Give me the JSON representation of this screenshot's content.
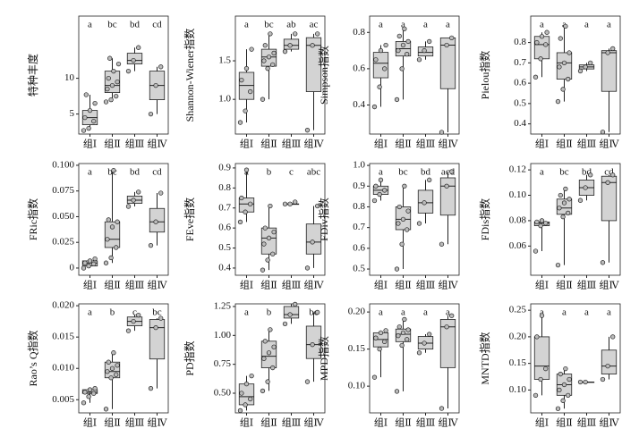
{
  "chart_data": [
    {
      "type": "box",
      "ylabel": "特种丰度",
      "categories": [
        "组Ⅰ",
        "组Ⅱ",
        "组Ⅲ",
        "组Ⅳ"
      ],
      "letters": [
        "a",
        "bc",
        "bd",
        "cd"
      ],
      "color": "#d3d3d3",
      "ylim": [
        2.2,
        18.7
      ],
      "yticks": [
        5,
        10
      ],
      "boxes": [
        {
          "min": 2.7,
          "q1": 3.5,
          "median": 4.5,
          "q3": 5.5,
          "max": 7.7,
          "points": [
            2.7,
            3,
            4,
            4.5,
            5.5,
            6.5,
            7.7
          ]
        },
        {
          "min": 6.7,
          "q1": 8,
          "median": 9,
          "q3": 11,
          "max": 12.8,
          "points": [
            6.7,
            7,
            7.5,
            8.5,
            9,
            9.5,
            10,
            11,
            12,
            12.8
          ]
        },
        {
          "min": 11,
          "q1": 12,
          "median": 12.5,
          "q3": 13.5,
          "max": 14.3,
          "points": [
            11,
            12.5,
            14.3
          ]
        },
        {
          "min": 5,
          "q1": 7,
          "median": 9,
          "q3": 11,
          "max": 11.6,
          "points": [
            5,
            9,
            11.6
          ]
        }
      ]
    },
    {
      "type": "box",
      "ylabel": "Shannon-Wiener指数",
      "categories": [
        "组Ⅰ",
        "组Ⅱ",
        "组Ⅲ",
        "组Ⅳ"
      ],
      "letters": [
        "a",
        "bc",
        "ab",
        "ac"
      ],
      "color": "#d3d3d3",
      "ylim": [
        0.55,
        2.08
      ],
      "yticks": [
        {
          "value": 1,
          "label": "1.0"
        },
        1.5
      ],
      "boxes": [
        {
          "min": 0.7,
          "q1": 1.0,
          "median": 1.18,
          "q3": 1.35,
          "max": 1.65,
          "points": [
            0.7,
            0.85,
            1.1,
            1.25,
            1.4,
            1.65
          ]
        },
        {
          "min": 1.0,
          "q1": 1.43,
          "median": 1.55,
          "q3": 1.65,
          "max": 1.85,
          "points": [
            1.0,
            1.4,
            1.45,
            1.5,
            1.55,
            1.6,
            1.7,
            1.85
          ]
        },
        {
          "min": 1.62,
          "q1": 1.65,
          "median": 1.7,
          "q3": 1.78,
          "max": 1.85,
          "points": [
            1.62,
            1.7,
            1.85
          ]
        },
        {
          "min": 0.6,
          "q1": 1.1,
          "median": 1.7,
          "q3": 1.8,
          "max": 1.85,
          "points": [
            0.6,
            1.7,
            1.85
          ]
        }
      ]
    },
    {
      "type": "box",
      "ylabel": "Simpson指数",
      "categories": [
        "组Ⅰ",
        "组Ⅱ",
        "组Ⅲ",
        "组Ⅳ"
      ],
      "letters": [
        "a",
        "a",
        "a",
        "a"
      ],
      "color": "#d3d3d3",
      "ylim": [
        0.24,
        0.89
      ],
      "yticks": [
        0.4,
        0.6,
        0.8
      ],
      "boxes": [
        {
          "min": 0.39,
          "q1": 0.55,
          "median": 0.63,
          "q3": 0.69,
          "max": 0.73,
          "points": [
            0.39,
            0.5,
            0.6,
            0.65,
            0.7,
            0.73
          ]
        },
        {
          "min": 0.43,
          "q1": 0.67,
          "median": 0.71,
          "q3": 0.75,
          "max": 0.82,
          "points": [
            0.43,
            0.6,
            0.68,
            0.7,
            0.73,
            0.75,
            0.78,
            0.82
          ]
        },
        {
          "min": 0.65,
          "q1": 0.67,
          "median": 0.69,
          "q3": 0.72,
          "max": 0.75,
          "points": [
            0.65,
            0.7,
            0.75
          ]
        },
        {
          "min": 0.25,
          "q1": 0.49,
          "median": 0.73,
          "q3": 0.77,
          "max": 0.77,
          "points": [
            0.25,
            0.73,
            0.77
          ]
        }
      ]
    },
    {
      "type": "box",
      "ylabel": "Pielou指数",
      "categories": [
        "组Ⅰ",
        "组Ⅱ",
        "组Ⅲ",
        "组Ⅳ"
      ],
      "letters": [
        "a",
        "a",
        "a",
        "a"
      ],
      "color": "#d3d3d3",
      "ylim": [
        0.35,
        0.93
      ],
      "yticks": [
        0.4,
        0.5,
        0.6,
        0.7,
        0.8
      ],
      "boxes": [
        {
          "min": 0.63,
          "q1": 0.72,
          "median": 0.79,
          "q3": 0.83,
          "max": 0.85,
          "points": [
            0.63,
            0.72,
            0.79,
            0.8,
            0.83,
            0.85
          ]
        },
        {
          "min": 0.51,
          "q1": 0.62,
          "median": 0.7,
          "q3": 0.75,
          "max": 0.88,
          "points": [
            0.51,
            0.57,
            0.62,
            0.68,
            0.7,
            0.75,
            0.82,
            0.88
          ]
        },
        {
          "min": 0.66,
          "q1": 0.67,
          "median": 0.68,
          "q3": 0.69,
          "max": 0.7,
          "points": [
            0.66,
            0.68,
            0.7
          ]
        },
        {
          "min": 0.36,
          "q1": 0.56,
          "median": 0.75,
          "q3": 0.76,
          "max": 0.77,
          "points": [
            0.36,
            0.75,
            0.77
          ]
        }
      ]
    },
    {
      "type": "box",
      "ylabel": "FRic指数",
      "categories": [
        "组Ⅰ",
        "组Ⅱ",
        "组Ⅲ",
        "组Ⅳ"
      ],
      "letters": [
        "a",
        "bc",
        "bd",
        "cd"
      ],
      "color": "#d3d3d3",
      "ylim": [
        -0.007,
        0.1017
      ],
      "yticks": [
        0,
        0.025,
        {
          "value": 0.05,
          "label": "0.050"
        },
        0.075,
        {
          "value": 0.1,
          "label": "0.100"
        }
      ],
      "boxes": [
        {
          "min": 0,
          "q1": 0.002,
          "median": 0.005,
          "q3": 0.007,
          "max": 0.009,
          "points": [
            0,
            0.002,
            0.004,
            0.005,
            0.007,
            0.009
          ]
        },
        {
          "min": 0.005,
          "q1": 0.02,
          "median": 0.028,
          "q3": 0.045,
          "max": 0.095,
          "points": [
            0.005,
            0.01,
            0.02,
            0.028,
            0.04,
            0.045,
            0.047,
            0.095
          ]
        },
        {
          "min": 0.06,
          "q1": 0.063,
          "median": 0.066,
          "q3": 0.07,
          "max": 0.074,
          "points": [
            0.06,
            0.066,
            0.074
          ]
        },
        {
          "min": 0.022,
          "q1": 0.035,
          "median": 0.045,
          "q3": 0.058,
          "max": 0.073,
          "points": [
            0.022,
            0.045,
            0.073
          ]
        }
      ]
    },
    {
      "type": "box",
      "ylabel": "FEve指数",
      "categories": [
        "组Ⅰ",
        "组Ⅱ",
        "组Ⅲ",
        "组Ⅳ"
      ],
      "letters": [
        "a",
        "b",
        "c",
        "abc"
      ],
      "color": "#d3d3d3",
      "ylim": [
        0.364,
        0.922
      ],
      "yticks": [
        0.4,
        0.5,
        0.6,
        0.7,
        0.8,
        0.9
      ],
      "boxes": [
        {
          "min": 0.63,
          "q1": 0.68,
          "median": 0.72,
          "q3": 0.75,
          "max": 0.89,
          "points": [
            0.63,
            0.68,
            0.72,
            0.75,
            0.89
          ]
        },
        {
          "min": 0.39,
          "q1": 0.47,
          "median": 0.55,
          "q3": 0.6,
          "max": 0.71,
          "points": [
            0.39,
            0.44,
            0.47,
            0.52,
            0.55,
            0.58,
            0.6,
            0.71
          ]
        },
        {
          "min": 0.72,
          "q1": 0.72,
          "median": 0.72,
          "q3": 0.72,
          "max": 0.73,
          "points": [
            0.72,
            0.72,
            0.73
          ]
        },
        {
          "min": 0.4,
          "q1": 0.47,
          "median": 0.53,
          "q3": 0.62,
          "max": 0.71,
          "points": [
            0.4,
            0.53,
            0.71
          ]
        }
      ]
    },
    {
      "type": "box",
      "ylabel": "FDiv指数",
      "categories": [
        "组Ⅰ",
        "组Ⅱ",
        "组Ⅲ",
        "组Ⅳ"
      ],
      "letters": [
        "a",
        "bc",
        "bd",
        "acd"
      ],
      "color": "#d3d3d3",
      "ylim": [
        0.47,
        1.009
      ],
      "yticks": [
        0.5,
        0.6,
        0.7,
        0.8,
        0.9,
        {
          "value": 1,
          "label": "1.0"
        }
      ],
      "boxes": [
        {
          "min": 0.83,
          "q1": 0.86,
          "median": 0.88,
          "q3": 0.9,
          "max": 0.93,
          "points": [
            0.83,
            0.86,
            0.88,
            0.9,
            0.93
          ]
        },
        {
          "min": 0.5,
          "q1": 0.69,
          "median": 0.74,
          "q3": 0.8,
          "max": 0.9,
          "points": [
            0.5,
            0.62,
            0.69,
            0.72,
            0.74,
            0.78,
            0.8,
            0.9
          ]
        },
        {
          "min": 0.72,
          "q1": 0.77,
          "median": 0.82,
          "q3": 0.88,
          "max": 0.93,
          "points": [
            0.72,
            0.82,
            0.93
          ]
        },
        {
          "min": 0.62,
          "q1": 0.76,
          "median": 0.9,
          "q3": 0.94,
          "max": 0.97,
          "points": [
            0.62,
            0.9,
            0.97
          ]
        }
      ]
    },
    {
      "type": "box",
      "ylabel": "FDis指数",
      "categories": [
        "组Ⅰ",
        "组Ⅱ",
        "组Ⅲ",
        "组Ⅳ"
      ],
      "letters": [
        "a",
        "bc",
        "bd",
        "cd"
      ],
      "color": "#d3d3d3",
      "ylim": [
        0.037,
        0.125
      ],
      "yticks": [
        0.06,
        0.08,
        {
          "value": 0.1,
          "label": "0.10"
        },
        0.12
      ],
      "boxes": [
        {
          "min": 0.056,
          "q1": 0.076,
          "median": 0.078,
          "q3": 0.079,
          "max": 0.08,
          "points": [
            0.056,
            0.076,
            0.078,
            0.079,
            0.08
          ]
        },
        {
          "min": 0.045,
          "q1": 0.085,
          "median": 0.09,
          "q3": 0.097,
          "max": 0.105,
          "points": [
            0.045,
            0.083,
            0.086,
            0.09,
            0.094,
            0.097,
            0.1,
            0.105
          ]
        },
        {
          "min": 0.096,
          "q1": 0.1,
          "median": 0.106,
          "q3": 0.112,
          "max": 0.116,
          "points": [
            0.096,
            0.106,
            0.116
          ]
        },
        {
          "min": 0.047,
          "q1": 0.08,
          "median": 0.11,
          "q3": 0.115,
          "max": 0.116,
          "points": [
            0.047,
            0.11,
            0.116
          ]
        }
      ]
    },
    {
      "type": "box",
      "ylabel": "Rao’s Q指数",
      "categories": [
        "组Ⅰ",
        "组Ⅱ",
        "组Ⅲ",
        "组Ⅳ"
      ],
      "letters": [
        "a",
        "b",
        "c",
        "bc"
      ],
      "color": "#d3d3d3",
      "ylim": [
        0.0029,
        0.0203
      ],
      "yticks": [
        0.005,
        {
          "value": 0.01,
          "label": "0.010"
        },
        0.015,
        {
          "value": 0.02,
          "label": "0.020"
        }
      ],
      "boxes": [
        {
          "min": 0.0045,
          "q1": 0.006,
          "median": 0.0062,
          "q3": 0.0066,
          "max": 0.0068,
          "points": [
            0.0045,
            0.0055,
            0.006,
            0.0062,
            0.0066,
            0.0068
          ]
        },
        {
          "min": 0.0035,
          "q1": 0.0085,
          "median": 0.0095,
          "q3": 0.011,
          "max": 0.0125,
          "points": [
            0.0035,
            0.0085,
            0.009,
            0.0095,
            0.01,
            0.0105,
            0.011,
            0.0125
          ]
        },
        {
          "min": 0.016,
          "q1": 0.0168,
          "median": 0.0175,
          "q3": 0.0182,
          "max": 0.0185,
          "points": [
            0.016,
            0.0175,
            0.0185
          ]
        },
        {
          "min": 0.0068,
          "q1": 0.0115,
          "median": 0.0165,
          "q3": 0.0178,
          "max": 0.018,
          "points": [
            0.0068,
            0.0165,
            0.018
          ]
        }
      ]
    },
    {
      "type": "box",
      "ylabel": "PD指数",
      "categories": [
        "组Ⅰ",
        "组Ⅱ",
        "组Ⅲ",
        "组Ⅳ"
      ],
      "letters": [
        "a",
        "b",
        "c",
        "bc"
      ],
      "color": "#d3d3d3",
      "ylim": [
        0.33,
        1.273
      ],
      "yticks": [
        {
          "value": 0.5,
          "label": "0.50"
        },
        0.75,
        {
          "value": 1,
          "label": "1.00"
        },
        1.25
      ],
      "boxes": [
        {
          "min": 0.35,
          "q1": 0.4,
          "median": 0.47,
          "q3": 0.58,
          "max": 0.65,
          "points": [
            0.35,
            0.4,
            0.45,
            0.5,
            0.58,
            0.65
          ]
        },
        {
          "min": 0.52,
          "q1": 0.72,
          "median": 0.82,
          "q3": 0.95,
          "max": 1.05,
          "points": [
            0.52,
            0.6,
            0.72,
            0.8,
            0.85,
            0.9,
            0.95,
            1.05
          ]
        },
        {
          "min": 1.1,
          "q1": 1.15,
          "median": 1.18,
          "q3": 1.25,
          "max": 1.27,
          "points": [
            1.1,
            1.18,
            1.27
          ]
        },
        {
          "min": 0.6,
          "q1": 0.8,
          "median": 0.92,
          "q3": 1.08,
          "max": 1.2,
          "points": [
            0.6,
            0.92,
            1.2
          ]
        }
      ]
    },
    {
      "type": "box",
      "ylabel": "MPD指数",
      "categories": [
        "组Ⅰ",
        "组Ⅱ",
        "组Ⅲ",
        "组Ⅳ"
      ],
      "letters": [
        "a",
        "a",
        "a",
        "a"
      ],
      "color": "#d3d3d3",
      "ylim": [
        0.064,
        0.211
      ],
      "yticks": [
        {
          "value": 0.1,
          "label": "0.10"
        },
        0.15,
        {
          "value": 0.2,
          "label": "0.20"
        }
      ],
      "boxes": [
        {
          "min": 0.112,
          "q1": 0.153,
          "median": 0.163,
          "q3": 0.172,
          "max": 0.175,
          "points": [
            0.112,
            0.15,
            0.16,
            0.165,
            0.172,
            0.175
          ]
        },
        {
          "min": 0.093,
          "q1": 0.16,
          "median": 0.17,
          "q3": 0.177,
          "max": 0.19,
          "points": [
            0.093,
            0.155,
            0.163,
            0.168,
            0.172,
            0.176,
            0.18,
            0.19
          ]
        },
        {
          "min": 0.145,
          "q1": 0.15,
          "median": 0.158,
          "q3": 0.167,
          "max": 0.17,
          "points": [
            0.145,
            0.158,
            0.17
          ]
        },
        {
          "min": 0.07,
          "q1": 0.125,
          "median": 0.18,
          "q3": 0.19,
          "max": 0.195,
          "points": [
            0.07,
            0.18,
            0.195
          ]
        }
      ]
    },
    {
      "type": "box",
      "ylabel": "MNTD指数",
      "categories": [
        "组Ⅰ",
        "组Ⅱ",
        "组Ⅲ",
        "组Ⅳ"
      ],
      "letters": [
        "a",
        "a",
        "a",
        "a"
      ],
      "color": "#d3d3d3",
      "ylim": [
        0.057,
        0.262
      ],
      "yticks": [
        {
          "value": 0.1,
          "label": "0.10"
        },
        0.15,
        {
          "value": 0.2,
          "label": "0.20"
        },
        0.25
      ],
      "boxes": [
        {
          "min": 0.09,
          "q1": 0.12,
          "median": 0.145,
          "q3": 0.2,
          "max": 0.24,
          "points": [
            0.09,
            0.12,
            0.14,
            0.2,
            0.24
          ]
        },
        {
          "min": 0.065,
          "q1": 0.09,
          "median": 0.11,
          "q3": 0.13,
          "max": 0.14,
          "points": [
            0.065,
            0.08,
            0.09,
            0.1,
            0.11,
            0.12,
            0.13,
            0.14
          ]
        },
        {
          "min": 0.115,
          "q1": 0.115,
          "median": 0.115,
          "q3": 0.115,
          "max": 0.115,
          "points": [
            0.115,
            0.115
          ]
        },
        {
          "min": 0.12,
          "q1": 0.13,
          "median": 0.145,
          "q3": 0.175,
          "max": 0.2,
          "points": [
            0.12,
            0.145,
            0.2
          ]
        }
      ]
    }
  ]
}
